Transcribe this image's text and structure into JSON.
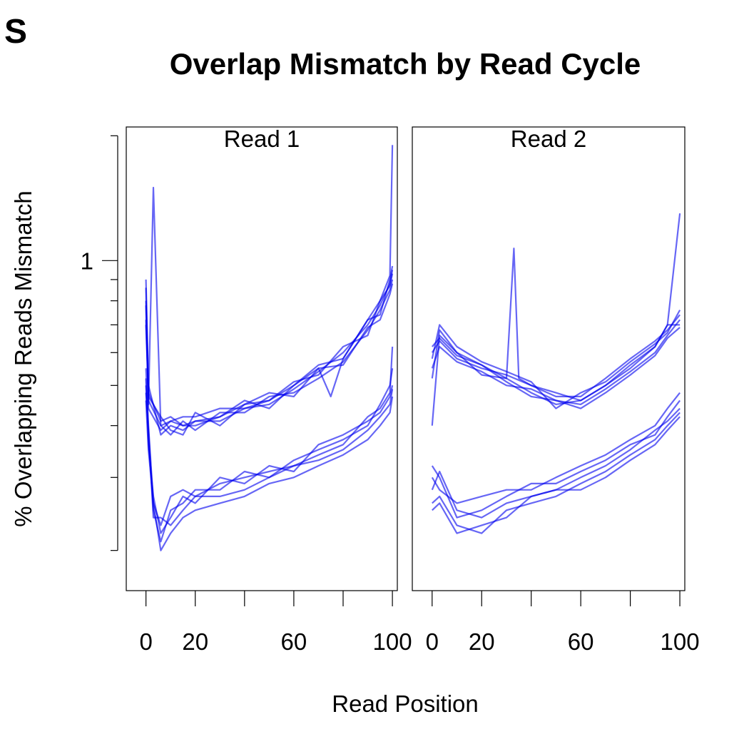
{
  "figure": {
    "corner_letter": "S",
    "title": "Overlap Mismatch by Read Cycle",
    "xlabel": "Read Position",
    "ylabel": "% Overlapping Reads Mismatch"
  },
  "chart_data": {
    "type": "line",
    "line_color": "#0000ee",
    "line_opacity": 0.6,
    "scale": "log",
    "title": "Overlap Mismatch by Read Cycle",
    "xlabel": "Read Position",
    "ylabel": "% Overlapping Reads Mismatch",
    "xlim": [
      -8,
      102
    ],
    "ylim": [
      0.16,
      2.1
    ],
    "yticks": [
      0.2,
      0.3,
      0.4,
      0.5,
      0.6,
      0.7,
      0.8,
      0.9,
      1,
      2
    ],
    "yticklabels": [
      {
        "value": 1,
        "label": "1"
      }
    ],
    "panels": [
      {
        "label": "Read 1",
        "xticks": [
          0,
          20,
          40,
          60,
          80,
          100
        ],
        "xticklabels": [
          {
            "value": 0,
            "label": "0"
          },
          {
            "value": 20,
            "label": "20"
          },
          {
            "value": 60,
            "label": "60"
          },
          {
            "value": 100,
            "label": "100"
          }
        ],
        "series": [
          {
            "group": "upper",
            "x": [
              0,
              1,
              3,
              6,
              10,
              15,
              20,
              30,
              40,
              50,
              60,
              70,
              75,
              80,
              90,
              95,
              99,
              100
            ],
            "y": [
              0.86,
              0.45,
              1.5,
              0.4,
              0.41,
              0.4,
              0.41,
              0.42,
              0.45,
              0.46,
              0.5,
              0.55,
              0.47,
              0.58,
              0.72,
              0.8,
              0.92,
              1.9
            ]
          },
          {
            "group": "upper",
            "x": [
              0,
              1,
              6,
              10,
              15,
              20,
              30,
              40,
              50,
              60,
              70,
              80,
              90,
              95,
              99,
              100
            ],
            "y": [
              0.9,
              0.5,
              0.38,
              0.4,
              0.39,
              0.41,
              0.41,
              0.44,
              0.45,
              0.49,
              0.54,
              0.6,
              0.7,
              0.78,
              0.88,
              0.95
            ]
          },
          {
            "group": "upper",
            "x": [
              0,
              1,
              6,
              10,
              15,
              20,
              30,
              40,
              50,
              60,
              70,
              80,
              90,
              95,
              99,
              100
            ],
            "y": [
              0.78,
              0.46,
              0.4,
              0.38,
              0.41,
              0.39,
              0.43,
              0.43,
              0.47,
              0.48,
              0.52,
              0.57,
              0.68,
              0.76,
              0.85,
              0.9
            ]
          },
          {
            "group": "upper",
            "x": [
              0,
              1,
              6,
              10,
              15,
              20,
              30,
              40,
              50,
              60,
              70,
              80,
              90,
              95,
              99,
              100
            ],
            "y": [
              0.72,
              0.48,
              0.41,
              0.42,
              0.4,
              0.4,
              0.42,
              0.46,
              0.44,
              0.5,
              0.56,
              0.58,
              0.72,
              0.74,
              0.9,
              0.97
            ]
          },
          {
            "group": "upper",
            "x": [
              0,
              1,
              6,
              10,
              15,
              20,
              30,
              40,
              50,
              60,
              70,
              80,
              90,
              95,
              99,
              100
            ],
            "y": [
              0.8,
              0.44,
              0.39,
              0.41,
              0.42,
              0.42,
              0.44,
              0.44,
              0.46,
              0.51,
              0.53,
              0.62,
              0.66,
              0.8,
              0.87,
              0.93
            ]
          },
          {
            "group": "upper",
            "x": [
              0,
              1,
              6,
              10,
              15,
              20,
              30,
              40,
              50,
              60,
              70,
              80,
              90,
              95,
              99,
              100
            ],
            "y": [
              0.7,
              0.47,
              0.42,
              0.39,
              0.38,
              0.43,
              0.4,
              0.45,
              0.48,
              0.47,
              0.55,
              0.56,
              0.69,
              0.72,
              0.83,
              0.88
            ]
          },
          {
            "group": "lower",
            "x": [
              0,
              1,
              3,
              6,
              10,
              15,
              20,
              30,
              40,
              50,
              60,
              70,
              80,
              90,
              95,
              99,
              100
            ],
            "y": [
              0.55,
              0.4,
              0.26,
              0.23,
              0.27,
              0.28,
              0.27,
              0.29,
              0.3,
              0.31,
              0.32,
              0.34,
              0.36,
              0.42,
              0.44,
              0.48,
              0.62
            ]
          },
          {
            "group": "lower",
            "x": [
              0,
              1,
              3,
              6,
              10,
              15,
              20,
              30,
              40,
              50,
              60,
              70,
              80,
              90,
              95,
              99,
              100
            ],
            "y": [
              0.5,
              0.38,
              0.25,
              0.21,
              0.25,
              0.26,
              0.28,
              0.28,
              0.31,
              0.3,
              0.33,
              0.35,
              0.37,
              0.4,
              0.45,
              0.5,
              0.55
            ]
          },
          {
            "group": "lower",
            "x": [
              0,
              1,
              3,
              6,
              10,
              15,
              20,
              30,
              40,
              50,
              60,
              70,
              80,
              90,
              95,
              99,
              100
            ],
            "y": [
              0.52,
              0.36,
              0.27,
              0.22,
              0.24,
              0.27,
              0.26,
              0.3,
              0.29,
              0.32,
              0.31,
              0.36,
              0.38,
              0.41,
              0.43,
              0.47,
              0.5
            ]
          },
          {
            "group": "lower",
            "x": [
              0,
              1,
              3,
              6,
              10,
              15,
              20,
              30,
              40,
              50,
              60,
              70,
              80,
              90,
              95,
              99,
              100
            ],
            "y": [
              0.48,
              0.39,
              0.24,
              0.24,
              0.23,
              0.25,
              0.27,
              0.27,
              0.28,
              0.3,
              0.32,
              0.33,
              0.35,
              0.39,
              0.42,
              0.45,
              0.49
            ]
          },
          {
            "group": "lower",
            "x": [
              0,
              1,
              3,
              6,
              10,
              15,
              20,
              30,
              40,
              50,
              60,
              70,
              80,
              90,
              95,
              99,
              100
            ],
            "y": [
              0.46,
              0.35,
              0.26,
              0.2,
              0.22,
              0.24,
              0.25,
              0.26,
              0.27,
              0.29,
              0.3,
              0.32,
              0.34,
              0.37,
              0.4,
              0.43,
              0.47
            ]
          }
        ]
      },
      {
        "label": "Read 2",
        "xticks": [
          0,
          20,
          40,
          60,
          80,
          100
        ],
        "xticklabels": [
          {
            "value": 0,
            "label": "0"
          },
          {
            "value": 20,
            "label": "20"
          },
          {
            "value": 60,
            "label": "60"
          },
          {
            "value": 100,
            "label": "100"
          }
        ],
        "series": [
          {
            "group": "upper",
            "x": [
              0,
              3,
              10,
              20,
              30,
              33,
              35,
              40,
              50,
              60,
              70,
              80,
              90,
              95,
              100
            ],
            "y": [
              0.52,
              0.68,
              0.6,
              0.56,
              0.52,
              1.07,
              0.52,
              0.5,
              0.48,
              0.46,
              0.5,
              0.56,
              0.62,
              0.7,
              1.3
            ]
          },
          {
            "group": "upper",
            "x": [
              0,
              3,
              10,
              20,
              30,
              40,
              50,
              60,
              70,
              80,
              90,
              95,
              100
            ],
            "y": [
              0.6,
              0.64,
              0.58,
              0.55,
              0.53,
              0.5,
              0.47,
              0.47,
              0.52,
              0.58,
              0.64,
              0.68,
              0.74
            ]
          },
          {
            "group": "upper",
            "x": [
              0,
              3,
              10,
              20,
              30,
              40,
              50,
              60,
              70,
              80,
              90,
              95,
              100
            ],
            "y": [
              0.55,
              0.62,
              0.57,
              0.54,
              0.5,
              0.49,
              0.46,
              0.45,
              0.49,
              0.54,
              0.6,
              0.66,
              0.72
            ]
          },
          {
            "group": "upper",
            "x": [
              0,
              3,
              10,
              20,
              30,
              40,
              50,
              60,
              70,
              80,
              90,
              95,
              100
            ],
            "y": [
              0.4,
              0.66,
              0.6,
              0.53,
              0.52,
              0.48,
              0.45,
              0.46,
              0.5,
              0.55,
              0.62,
              0.7,
              0.7
            ]
          },
          {
            "group": "upper",
            "x": [
              0,
              3,
              10,
              20,
              30,
              40,
              50,
              60,
              70,
              80,
              90,
              95,
              100
            ],
            "y": [
              0.58,
              0.7,
              0.62,
              0.57,
              0.54,
              0.51,
              0.44,
              0.48,
              0.51,
              0.57,
              0.63,
              0.67,
              0.76
            ]
          },
          {
            "group": "upper",
            "x": [
              0,
              3,
              10,
              20,
              30,
              40,
              50,
              60,
              70,
              80,
              90,
              95,
              100
            ],
            "y": [
              0.62,
              0.65,
              0.59,
              0.56,
              0.51,
              0.47,
              0.46,
              0.44,
              0.48,
              0.53,
              0.59,
              0.65,
              0.69
            ]
          },
          {
            "group": "lower",
            "x": [
              0,
              3,
              10,
              20,
              30,
              40,
              50,
              60,
              70,
              80,
              90,
              95,
              100
            ],
            "y": [
              0.3,
              0.28,
              0.26,
              0.27,
              0.28,
              0.28,
              0.3,
              0.32,
              0.34,
              0.37,
              0.4,
              0.44,
              0.48
            ]
          },
          {
            "group": "lower",
            "x": [
              0,
              3,
              10,
              20,
              30,
              40,
              50,
              60,
              70,
              80,
              90,
              95,
              100
            ],
            "y": [
              0.32,
              0.3,
              0.24,
              0.25,
              0.27,
              0.29,
              0.29,
              0.31,
              0.33,
              0.36,
              0.38,
              0.42,
              0.46
            ]
          },
          {
            "group": "lower",
            "x": [
              0,
              3,
              10,
              20,
              30,
              40,
              50,
              60,
              70,
              80,
              90,
              95,
              100
            ],
            "y": [
              0.28,
              0.31,
              0.25,
              0.24,
              0.26,
              0.27,
              0.28,
              0.3,
              0.32,
              0.35,
              0.39,
              0.41,
              0.44
            ]
          },
          {
            "group": "lower",
            "x": [
              0,
              3,
              10,
              20,
              30,
              40,
              50,
              60,
              70,
              80,
              90,
              95,
              100
            ],
            "y": [
              0.26,
              0.27,
              0.23,
              0.22,
              0.25,
              0.26,
              0.27,
              0.29,
              0.31,
              0.34,
              0.37,
              0.4,
              0.43
            ]
          },
          {
            "group": "lower",
            "x": [
              0,
              3,
              10,
              20,
              30,
              40,
              50,
              60,
              70,
              80,
              90,
              95,
              100
            ],
            "y": [
              0.25,
              0.26,
              0.22,
              0.23,
              0.24,
              0.27,
              0.28,
              0.28,
              0.3,
              0.33,
              0.36,
              0.39,
              0.42
            ]
          }
        ]
      }
    ]
  }
}
